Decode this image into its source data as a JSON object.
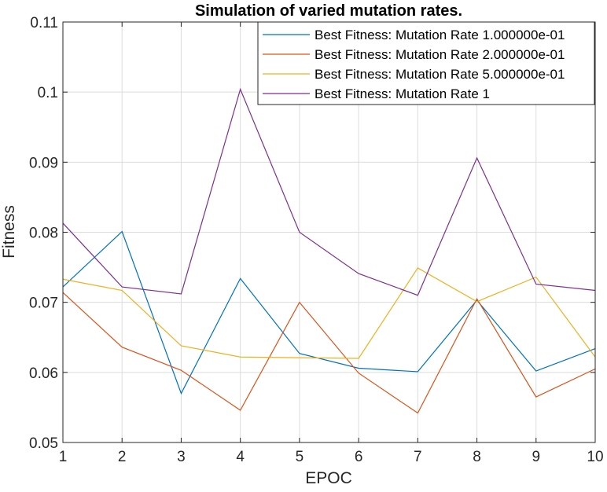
{
  "chart_data": {
    "type": "line",
    "title": "Simulation of varied mutation rates.",
    "xlabel": "EPOC",
    "ylabel": "Fitness",
    "x": [
      1,
      2,
      3,
      4,
      5,
      6,
      7,
      8,
      9,
      10
    ],
    "xlim": [
      1,
      10
    ],
    "ylim": [
      0.05,
      0.11
    ],
    "xticks": [
      "1",
      "2",
      "3",
      "4",
      "5",
      "6",
      "7",
      "8",
      "9",
      "10"
    ],
    "yticks": [
      "0.05",
      "0.06",
      "0.07",
      "0.08",
      "0.09",
      "0.1",
      "0.11"
    ],
    "grid": true,
    "legend_position": "top-right",
    "series": [
      {
        "name": "Best Fitness: Mutation Rate 1.000000e-01",
        "color": "#0072BD",
        "values": [
          0.0722,
          0.0801,
          0.057,
          0.0734,
          0.0627,
          0.0606,
          0.0601,
          0.0703,
          0.0602,
          0.0634
        ]
      },
      {
        "name": "Best Fitness: Mutation Rate 2.000000e-01",
        "color": "#D95319",
        "values": [
          0.0714,
          0.0636,
          0.0603,
          0.0546,
          0.07,
          0.0599,
          0.0542,
          0.0705,
          0.0565,
          0.0605
        ]
      },
      {
        "name": "Best Fitness: Mutation Rate 5.000000e-01",
        "color": "#EDB120",
        "values": [
          0.0733,
          0.0717,
          0.0638,
          0.0622,
          0.0621,
          0.062,
          0.0749,
          0.0701,
          0.0736,
          0.0622
        ]
      },
      {
        "name": "Best Fitness: Mutation Rate 1",
        "color": "#7E2F8E",
        "values": [
          0.0813,
          0.0722,
          0.0712,
          0.1004,
          0.08,
          0.0741,
          0.071,
          0.0906,
          0.0726,
          0.0717
        ]
      }
    ]
  }
}
